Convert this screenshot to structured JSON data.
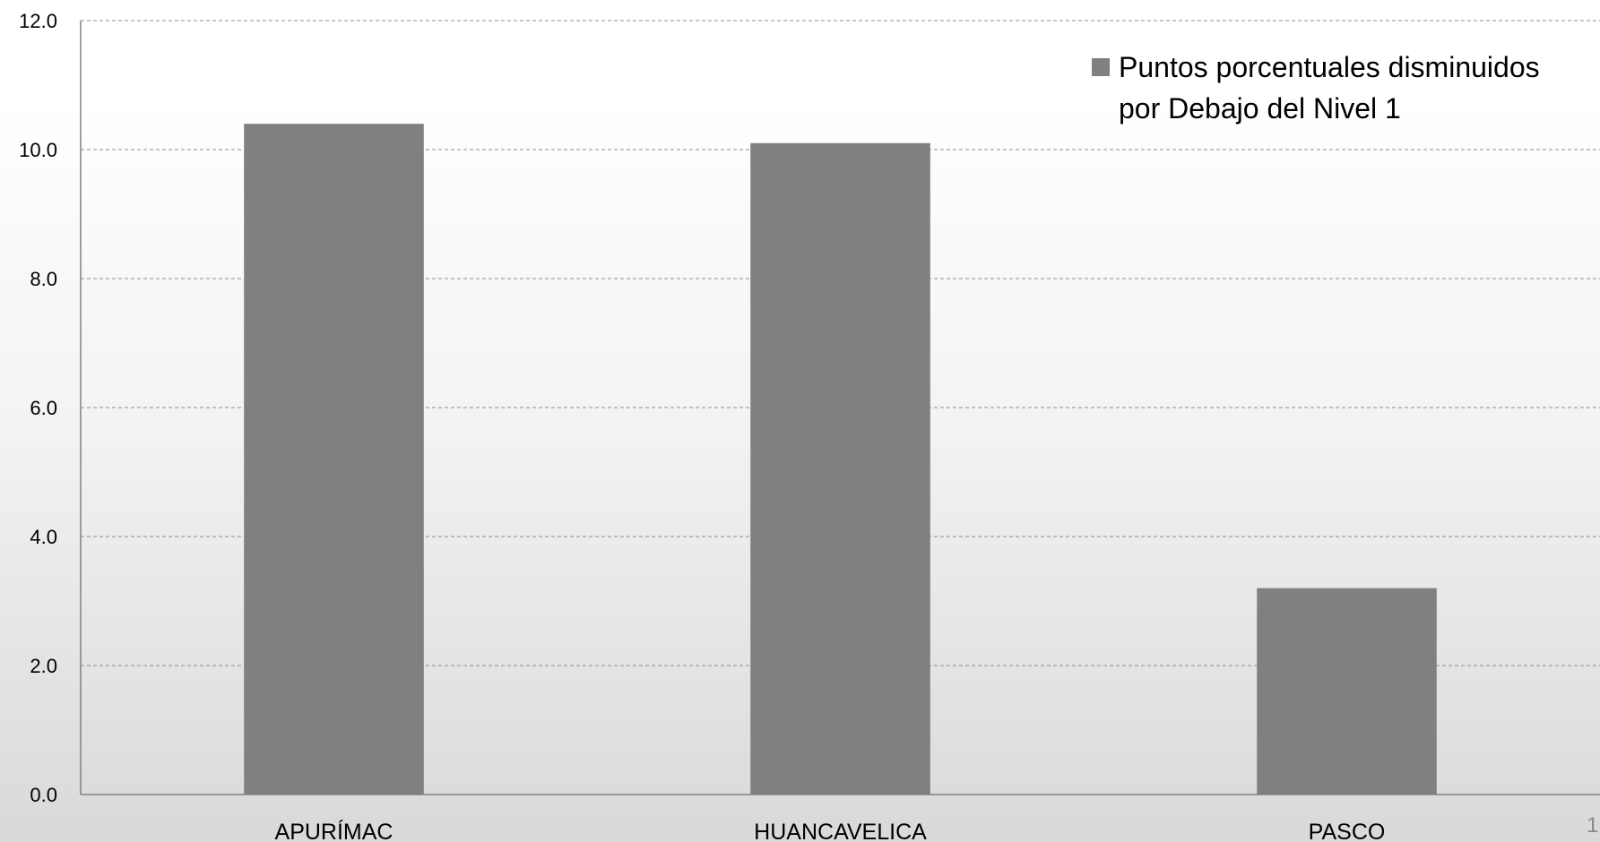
{
  "chart_data": {
    "type": "bar",
    "categories": [
      "APURÍMAC",
      "HUANCAVELICA",
      "PASCO"
    ],
    "series": [
      {
        "name": "Puntos porcentuales disminuidos por Debajo del Nivel 1",
        "values": [
          10.4,
          10.1,
          3.2
        ],
        "color": "#808080"
      }
    ],
    "y_ticks": [
      "0.0",
      "2.0",
      "4.0",
      "6.0",
      "8.0",
      "10.0",
      "12.0"
    ],
    "ylim": [
      0,
      12
    ],
    "grid": "horizontal dashed",
    "legend": {
      "position": "top-right",
      "lines": [
        "Puntos porcentuales disminuidos",
        "por Debajo del Nivel 1"
      ]
    },
    "title": "",
    "xlabel": "",
    "ylabel": ""
  },
  "page_number": "1"
}
